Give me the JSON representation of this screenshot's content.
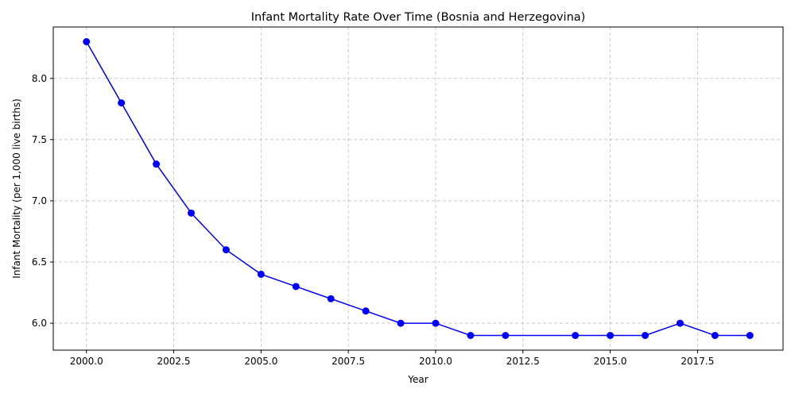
{
  "chart_data": {
    "type": "line",
    "title": "Infant Mortality Rate Over Time (Bosnia and Herzegovina)",
    "xlabel": "Year",
    "ylabel": "Infant Mortality (per 1,000 live births)",
    "xlim": [
      1999.05,
      2019.95
    ],
    "ylim": [
      5.78,
      8.42
    ],
    "x_ticks": [
      2000,
      2002.5,
      2005,
      2007.5,
      2010,
      2012.5,
      2015,
      2017.5
    ],
    "x_tick_labels": [
      "2000.0",
      "2002.5",
      "2005.0",
      "2007.5",
      "2010.0",
      "2012.5",
      "2015.0",
      "2017.5"
    ],
    "y_ticks": [
      6.0,
      6.5,
      7.0,
      7.5,
      8.0
    ],
    "y_tick_labels": [
      "6.0",
      "6.5",
      "7.0",
      "7.5",
      "8.0"
    ],
    "grid": true,
    "legend": "none",
    "series": [
      {
        "color": "#0000ff",
        "marker": "circle",
        "points": [
          {
            "x": 2000,
            "y": 8.3
          },
          {
            "x": 2001,
            "y": 7.8
          },
          {
            "x": 2002,
            "y": 7.3
          },
          {
            "x": 2003,
            "y": 6.9
          },
          {
            "x": 2004,
            "y": 6.6
          },
          {
            "x": 2005,
            "y": 6.4
          },
          {
            "x": 2006,
            "y": 6.3
          },
          {
            "x": 2007,
            "y": 6.2
          },
          {
            "x": 2008,
            "y": 6.1
          },
          {
            "x": 2009,
            "y": 6.0
          },
          {
            "x": 2010,
            "y": 6.0
          },
          {
            "x": 2011,
            "y": 5.9
          },
          {
            "x": 2012,
            "y": 5.9
          },
          {
            "x": 2014,
            "y": 5.9
          },
          {
            "x": 2015,
            "y": 5.9
          },
          {
            "x": 2016,
            "y": 5.9
          },
          {
            "x": 2017,
            "y": 6.0
          },
          {
            "x": 2018,
            "y": 5.9
          },
          {
            "x": 2019,
            "y": 5.9
          }
        ]
      }
    ]
  }
}
